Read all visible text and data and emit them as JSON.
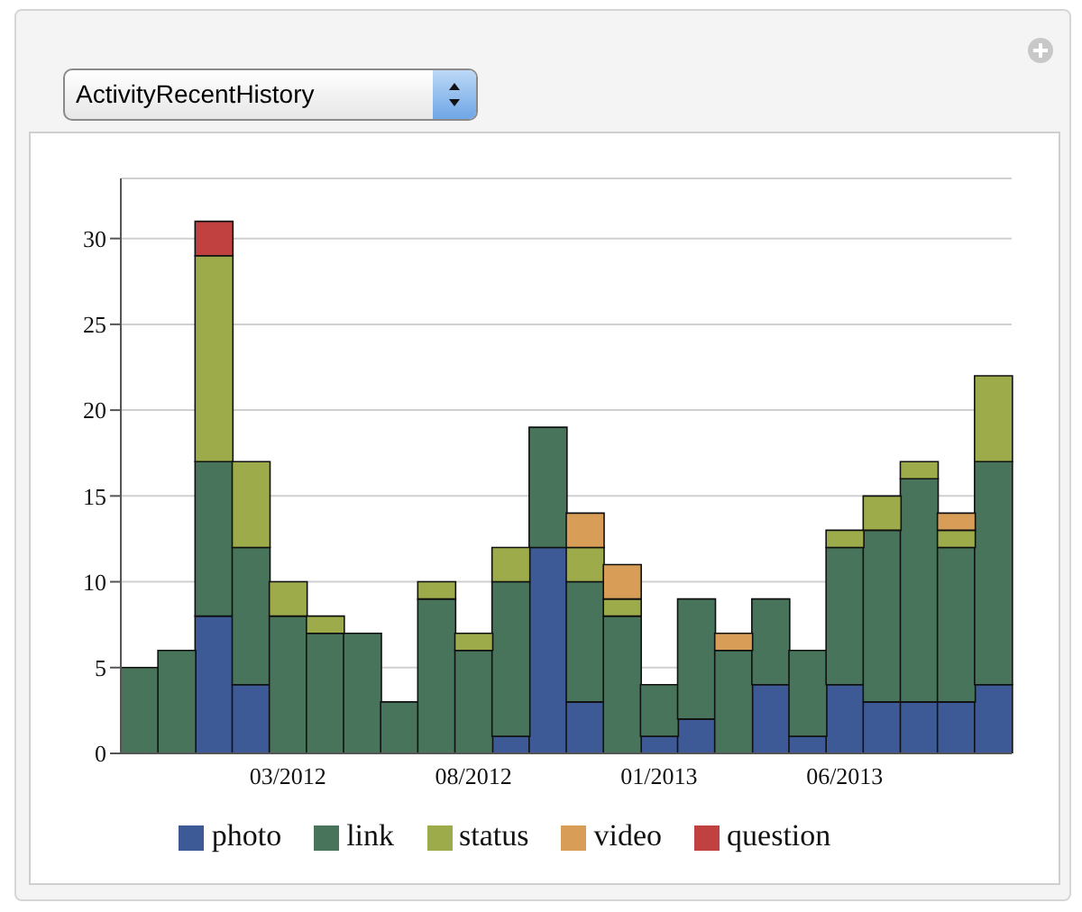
{
  "chart_data": {
    "type": "bar",
    "title": "ActivityRecentHistory",
    "stacked": true,
    "categories": [
      null,
      null,
      null,
      null,
      "03/2012",
      null,
      null,
      null,
      null,
      "08/2012",
      null,
      null,
      null,
      null,
      "01/2013",
      null,
      null,
      null,
      null,
      "06/2013",
      null,
      null,
      null,
      null
    ],
    "series": [
      {
        "name": "photo",
        "color": "#3d5a96",
        "values": [
          0,
          0,
          8,
          4,
          0,
          0,
          0,
          0,
          0,
          0,
          1,
          12,
          3,
          0,
          1,
          2,
          0,
          4,
          1,
          4,
          3,
          3,
          3,
          4
        ]
      },
      {
        "name": "link",
        "color": "#47745a",
        "values": [
          5,
          6,
          9,
          8,
          8,
          7,
          7,
          3,
          9,
          6,
          9,
          7,
          7,
          8,
          3,
          7,
          6,
          5,
          5,
          8,
          10,
          13,
          9,
          13
        ]
      },
      {
        "name": "status",
        "color": "#9dab4a",
        "values": [
          0,
          0,
          12,
          5,
          2,
          1,
          0,
          0,
          1,
          1,
          2,
          0,
          2,
          1,
          0,
          0,
          0,
          0,
          0,
          1,
          2,
          1,
          1,
          5
        ]
      },
      {
        "name": "video",
        "color": "#d89e58",
        "values": [
          0,
          0,
          0,
          0,
          0,
          0,
          0,
          0,
          0,
          0,
          0,
          0,
          2,
          2,
          0,
          0,
          1,
          0,
          0,
          0,
          0,
          0,
          1,
          0
        ]
      },
      {
        "name": "question",
        "color": "#c0413f",
        "values": [
          0,
          0,
          2,
          0,
          0,
          0,
          0,
          0,
          0,
          0,
          0,
          0,
          0,
          0,
          0,
          0,
          0,
          0,
          0,
          0,
          0,
          0,
          0,
          0
        ]
      }
    ],
    "ylim": [
      0,
      33.5
    ],
    "yticks": [
      0,
      5,
      10,
      15,
      20,
      25,
      30
    ],
    "grid": "y",
    "legend": "bottom"
  }
}
